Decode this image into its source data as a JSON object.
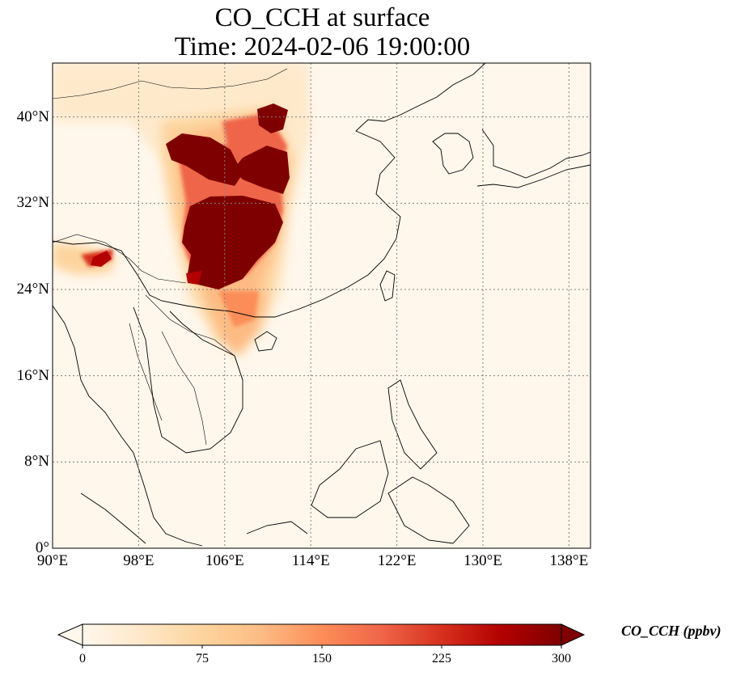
{
  "title": {
    "line1": "CO_CCH at surface",
    "line2": "Time: 2024-02-06 19:00:00"
  },
  "map": {
    "projection": "PlateCarree",
    "lon_range": [
      90,
      140
    ],
    "lat_range": [
      0,
      45
    ],
    "gridlines": "dotted",
    "lon_ticks": [
      {
        "value": 90,
        "label": "90°E"
      },
      {
        "value": 98,
        "label": "98°E"
      },
      {
        "value": 106,
        "label": "106°E"
      },
      {
        "value": 114,
        "label": "114°E"
      },
      {
        "value": 122,
        "label": "122°E"
      },
      {
        "value": 130,
        "label": "130°E"
      },
      {
        "value": 138,
        "label": "138°E"
      }
    ],
    "lat_ticks": [
      {
        "value": 0,
        "label": "0°"
      },
      {
        "value": 8,
        "label": "8°N"
      },
      {
        "value": 16,
        "label": "16°N"
      },
      {
        "value": 24,
        "label": "24°N"
      },
      {
        "value": 32,
        "label": "32°N"
      },
      {
        "value": 40,
        "label": "40°N"
      }
    ]
  },
  "colorbar": {
    "label": "CO_CCH (ppbv)",
    "colormap": "OrRd",
    "range": [
      0,
      300
    ],
    "extend": "both",
    "ticks": [
      {
        "value": 0,
        "label": "0"
      },
      {
        "value": 75,
        "label": "75"
      },
      {
        "value": 150,
        "label": "150"
      },
      {
        "value": 225,
        "label": "225"
      },
      {
        "value": 300,
        "label": "300"
      }
    ],
    "colors": [
      "#fff7ec",
      "#fee8c8",
      "#fdd49e",
      "#fdbb84",
      "#fc8d59",
      "#ef6548",
      "#d7301f",
      "#b30000",
      "#7f0000"
    ]
  }
}
